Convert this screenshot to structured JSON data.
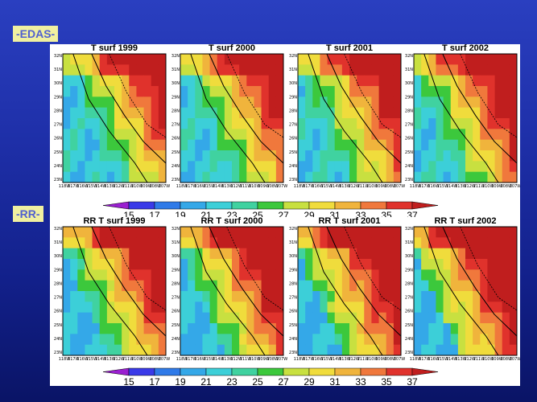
{
  "sections": [
    {
      "label": "-EDAS-",
      "panels": [
        {
          "title": "T surf  1999"
        },
        {
          "title": "T surf  2000"
        },
        {
          "title": "T surf  2001"
        },
        {
          "title": "T surf  2002"
        }
      ]
    },
    {
      "label": "-RR-",
      "panels": [
        {
          "title": "RR    T surf  1999"
        },
        {
          "title": "RR    T surf  2000"
        },
        {
          "title": "RR    T surf  2001"
        },
        {
          "title": "RR    T surf  2002"
        }
      ]
    }
  ],
  "colorbar": {
    "ticks": [
      "15",
      "17",
      "19",
      "21",
      "23",
      "25",
      "27",
      "29",
      "31",
      "33",
      "35",
      "37"
    ],
    "colors": [
      "#9a1fd0",
      "#3a3ae8",
      "#2f7ae8",
      "#34a8e8",
      "#3ccfd8",
      "#40d2a0",
      "#3cc83c",
      "#c8e040",
      "#f0dc3c",
      "#f0b43c",
      "#f0783c",
      "#e0322c",
      "#c01e1e"
    ]
  },
  "y_ticks": [
    "32N",
    "31N",
    "30N",
    "29N",
    "28N",
    "27N",
    "26N",
    "25N",
    "24N",
    "23N"
  ],
  "x_ticks": [
    "118W",
    "117W",
    "116W",
    "115W",
    "114W",
    "113W",
    "112W",
    "111W",
    "110W",
    "109W",
    "108W",
    "107W"
  ]
}
